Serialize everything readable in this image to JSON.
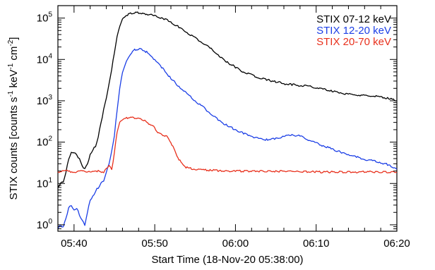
{
  "chart_data": {
    "type": "line",
    "xlabel": "Start Time (18-Nov-20 05:38:00)",
    "ylabel": "STIX counts [counts s",
    "ylabel_parts": {
      "p1": "STIX counts [counts s",
      "e1": "-1",
      "p2": " keV",
      "e2": "-1",
      "p3": " cm",
      "e3": "-2",
      "p4": "]"
    },
    "y_scale": "log",
    "xlim": [
      "05:38",
      "06:20"
    ],
    "ylim": [
      0.7,
      200000
    ],
    "x_ticks": [
      {
        "value": "05:40",
        "label": "05:40"
      },
      {
        "value": "05:50",
        "label": "05:50"
      },
      {
        "value": "06:00",
        "label": "06:00"
      },
      {
        "value": "06:10",
        "label": "06:10"
      },
      {
        "value": "06:20",
        "label": "06:20"
      }
    ],
    "y_ticks": [
      {
        "value": 1,
        "base": "10",
        "exp": "0"
      },
      {
        "value": 10,
        "base": "10",
        "exp": "1"
      },
      {
        "value": 100,
        "base": "10",
        "exp": "2"
      },
      {
        "value": 1000,
        "base": "10",
        "exp": "3"
      },
      {
        "value": 10000,
        "base": "10",
        "exp": "4"
      },
      {
        "value": 100000,
        "base": "10",
        "exp": "5"
      }
    ],
    "legend_position": "top-right",
    "series": [
      {
        "name": "STIX 07-12 keV",
        "color": "#000000",
        "points": [
          [
            "05:38:00",
            8
          ],
          [
            "05:38:20",
            10
          ],
          [
            "05:38:40",
            11
          ],
          [
            "05:39:00",
            18
          ],
          [
            "05:39:20",
            40
          ],
          [
            "05:39:40",
            55
          ],
          [
            "05:40:00",
            58
          ],
          [
            "05:40:20",
            50
          ],
          [
            "05:40:40",
            38
          ],
          [
            "05:41:00",
            28
          ],
          [
            "05:41:20",
            22
          ],
          [
            "05:41:40",
            30
          ],
          [
            "05:42:00",
            50
          ],
          [
            "05:42:20",
            65
          ],
          [
            "05:42:40",
            80
          ],
          [
            "05:43:00",
            130
          ],
          [
            "05:43:20",
            300
          ],
          [
            "05:43:40",
            600
          ],
          [
            "05:44:00",
            1200
          ],
          [
            "05:44:20",
            2500
          ],
          [
            "05:44:40",
            6000
          ],
          [
            "05:45:00",
            15000
          ],
          [
            "05:45:20",
            35000
          ],
          [
            "05:45:40",
            65000
          ],
          [
            "05:46:00",
            95000
          ],
          [
            "05:46:30",
            118000
          ],
          [
            "05:47:00",
            130000
          ],
          [
            "05:47:30",
            136000
          ],
          [
            "05:48:00",
            134000
          ],
          [
            "05:48:30",
            130000
          ],
          [
            "05:49:00",
            125000
          ],
          [
            "05:50:00",
            115000
          ],
          [
            "05:51:00",
            100000
          ],
          [
            "05:52:00",
            80000
          ],
          [
            "05:53:00",
            60000
          ],
          [
            "05:54:00",
            45000
          ],
          [
            "05:55:00",
            33000
          ],
          [
            "05:56:00",
            25000
          ],
          [
            "05:57:00",
            18000
          ],
          [
            "05:58:00",
            12000
          ],
          [
            "05:59:00",
            8500
          ],
          [
            "06:00:00",
            6500
          ],
          [
            "06:01:00",
            5000
          ],
          [
            "06:02:00",
            4200
          ],
          [
            "06:03:00",
            3600
          ],
          [
            "06:04:00",
            3200
          ],
          [
            "06:05:00",
            2900
          ],
          [
            "06:06:00",
            2600
          ],
          [
            "06:07:00",
            2450
          ],
          [
            "06:08:00",
            2350
          ],
          [
            "06:09:00",
            2250
          ],
          [
            "06:10:00",
            2100
          ],
          [
            "06:11:00",
            1900
          ],
          [
            "06:12:00",
            1700
          ],
          [
            "06:13:00",
            1550
          ],
          [
            "06:14:00",
            1450
          ],
          [
            "06:15:00",
            1400
          ],
          [
            "06:16:00",
            1350
          ],
          [
            "06:17:00",
            1300
          ],
          [
            "06:18:00",
            1250
          ],
          [
            "06:19:00",
            1150
          ],
          [
            "06:20:00",
            1000
          ]
        ]
      },
      {
        "name": "STIX 12-20 keV",
        "color": "#1c3fe6",
        "points": [
          [
            "05:38:00",
            0.8
          ],
          [
            "05:38:20",
            1.0
          ],
          [
            "05:38:40",
            0.85
          ],
          [
            "05:39:00",
            1.5
          ],
          [
            "05:39:20",
            2.5
          ],
          [
            "05:39:40",
            3.0
          ],
          [
            "05:40:00",
            2.2
          ],
          [
            "05:40:20",
            2.6
          ],
          [
            "05:40:40",
            1.7
          ],
          [
            "05:41:00",
            1.3
          ],
          [
            "05:41:20",
            1.0
          ],
          [
            "05:41:40",
            2.0
          ],
          [
            "05:42:00",
            4.0
          ],
          [
            "05:42:20",
            5.0
          ],
          [
            "05:42:40",
            6.5
          ],
          [
            "05:43:00",
            8
          ],
          [
            "05:43:20",
            10
          ],
          [
            "05:43:40",
            12
          ],
          [
            "05:44:00",
            18
          ],
          [
            "05:44:20",
            30
          ],
          [
            "05:44:40",
            60
          ],
          [
            "05:45:00",
            150
          ],
          [
            "05:45:20",
            600
          ],
          [
            "05:45:40",
            2000
          ],
          [
            "05:46:00",
            5000
          ],
          [
            "05:46:30",
            9000
          ],
          [
            "05:47:00",
            14000
          ],
          [
            "05:47:30",
            17000
          ],
          [
            "05:48:00",
            18000
          ],
          [
            "05:48:30",
            17000
          ],
          [
            "05:49:00",
            15000
          ],
          [
            "05:50:00",
            10000
          ],
          [
            "05:51:00",
            6000
          ],
          [
            "05:52:00",
            3500
          ],
          [
            "05:53:00",
            2200
          ],
          [
            "05:54:00",
            1500
          ],
          [
            "05:55:00",
            1000
          ],
          [
            "05:56:00",
            700
          ],
          [
            "05:57:00",
            480
          ],
          [
            "05:58:00",
            330
          ],
          [
            "05:59:00",
            250
          ],
          [
            "06:00:00",
            200
          ],
          [
            "06:01:00",
            165
          ],
          [
            "06:02:00",
            140
          ],
          [
            "06:03:00",
            118
          ],
          [
            "06:04:00",
            115
          ],
          [
            "06:05:00",
            120
          ],
          [
            "06:06:00",
            138
          ],
          [
            "06:07:00",
            150
          ],
          [
            "06:08:00",
            140
          ],
          [
            "06:09:00",
            115
          ],
          [
            "06:10:00",
            95
          ],
          [
            "06:11:00",
            80
          ],
          [
            "06:12:00",
            68
          ],
          [
            "06:13:00",
            58
          ],
          [
            "06:14:00",
            50
          ],
          [
            "06:15:00",
            44
          ],
          [
            "06:16:00",
            38
          ],
          [
            "06:17:00",
            35
          ],
          [
            "06:18:00",
            32
          ],
          [
            "06:19:00",
            28
          ],
          [
            "06:20:00",
            22
          ]
        ]
      },
      {
        "name": "STIX 20-70 keV",
        "color": "#e8301c",
        "points": [
          [
            "05:38:00",
            19
          ],
          [
            "05:39:00",
            20
          ],
          [
            "05:40:00",
            19
          ],
          [
            "05:41:00",
            20
          ],
          [
            "05:42:00",
            19
          ],
          [
            "05:43:00",
            20
          ],
          [
            "05:43:40",
            19
          ],
          [
            "05:44:00",
            23
          ],
          [
            "05:44:20",
            27
          ],
          [
            "05:44:40",
            22
          ],
          [
            "05:45:00",
            55
          ],
          [
            "05:45:20",
            180
          ],
          [
            "05:45:40",
            300
          ],
          [
            "05:46:00",
            350
          ],
          [
            "05:46:30",
            380
          ],
          [
            "05:47:00",
            400
          ],
          [
            "05:47:30",
            380
          ],
          [
            "05:48:00",
            370
          ],
          [
            "05:48:30",
            350
          ],
          [
            "05:49:00",
            300
          ],
          [
            "05:49:30",
            270
          ],
          [
            "05:50:00",
            220
          ],
          [
            "05:50:30",
            160
          ],
          [
            "05:51:00",
            150
          ],
          [
            "05:51:30",
            135
          ],
          [
            "05:52:00",
            100
          ],
          [
            "05:52:30",
            60
          ],
          [
            "05:53:00",
            38
          ],
          [
            "05:53:30",
            28
          ],
          [
            "05:54:00",
            24
          ],
          [
            "05:55:00",
            22
          ],
          [
            "05:56:00",
            21
          ],
          [
            "05:57:00",
            21
          ],
          [
            "05:58:00",
            20
          ],
          [
            "06:00:00",
            20
          ],
          [
            "06:05:00",
            20
          ],
          [
            "06:10:00",
            19
          ],
          [
            "06:15:00",
            19
          ],
          [
            "06:20:00",
            19
          ]
        ]
      }
    ]
  }
}
